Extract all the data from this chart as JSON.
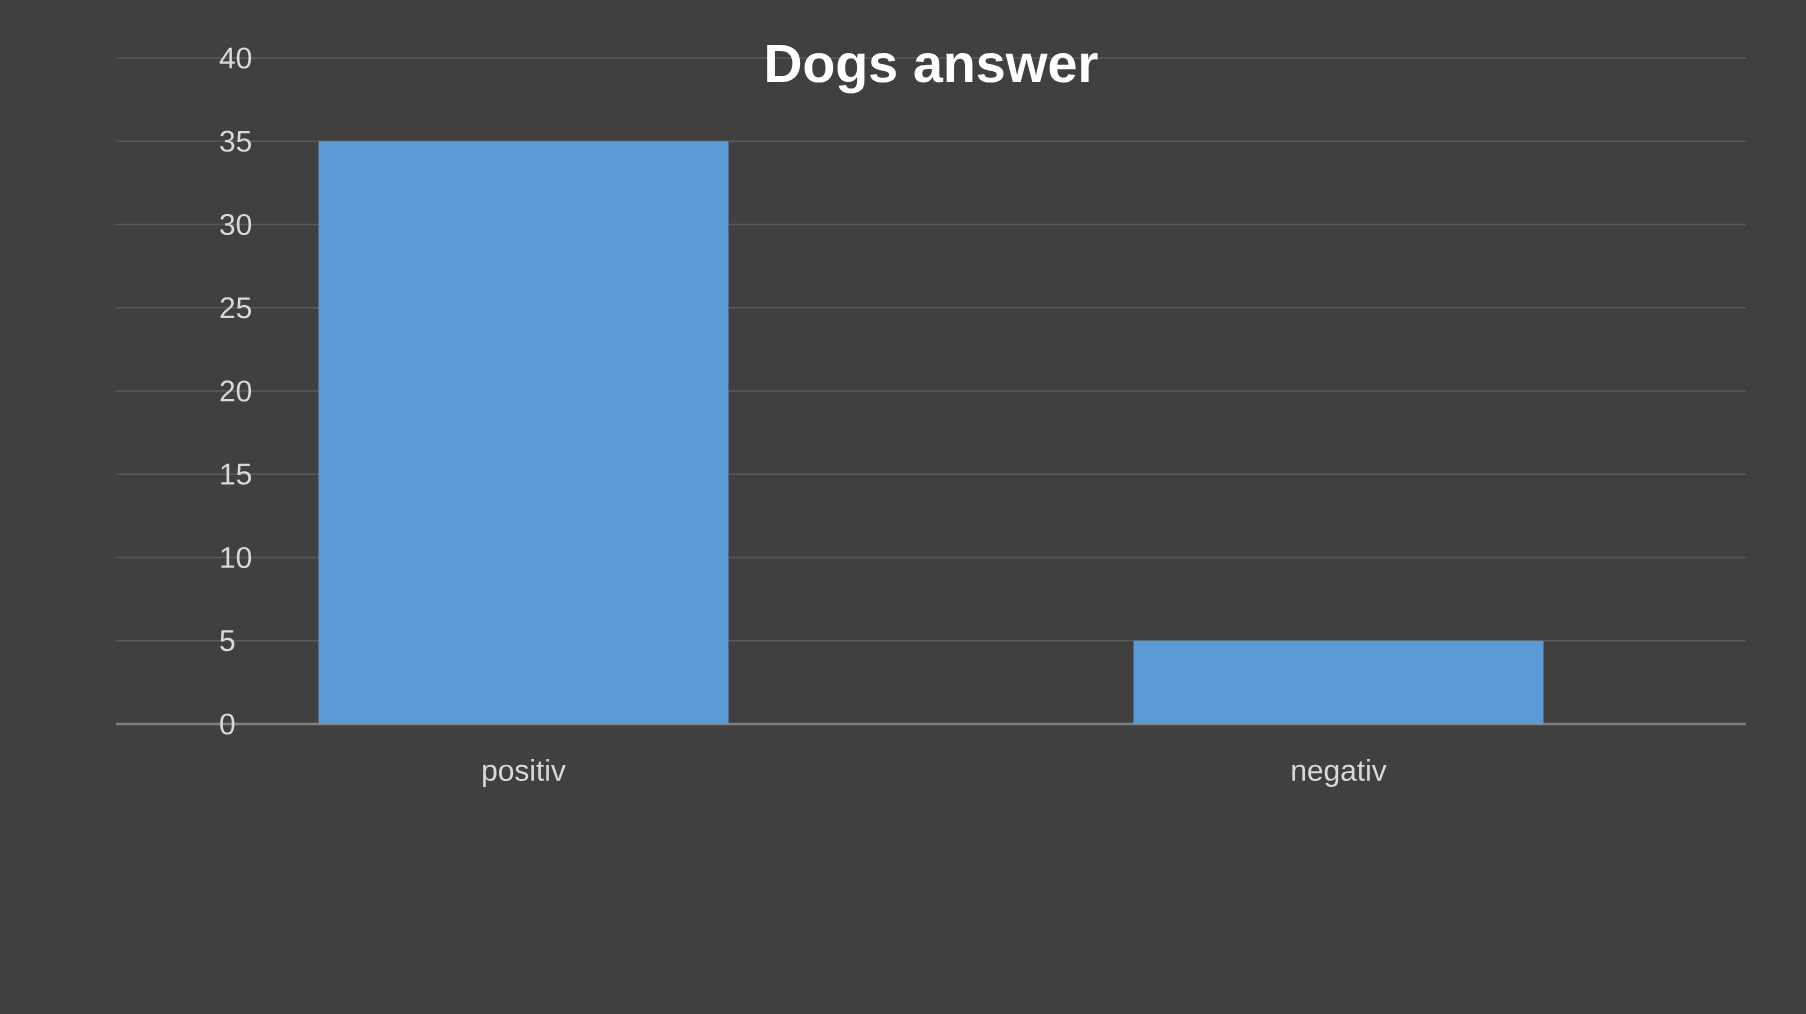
{
  "chart_data": {
    "type": "bar",
    "title": "Dogs answer",
    "categories": [
      "positiv",
      "negativ"
    ],
    "values": [
      35,
      5
    ],
    "color": "#5b9bd5",
    "ylim": [
      0,
      40
    ],
    "yticks": [
      0,
      5,
      10,
      15,
      20,
      25,
      30,
      35,
      40
    ],
    "grid": "y"
  }
}
